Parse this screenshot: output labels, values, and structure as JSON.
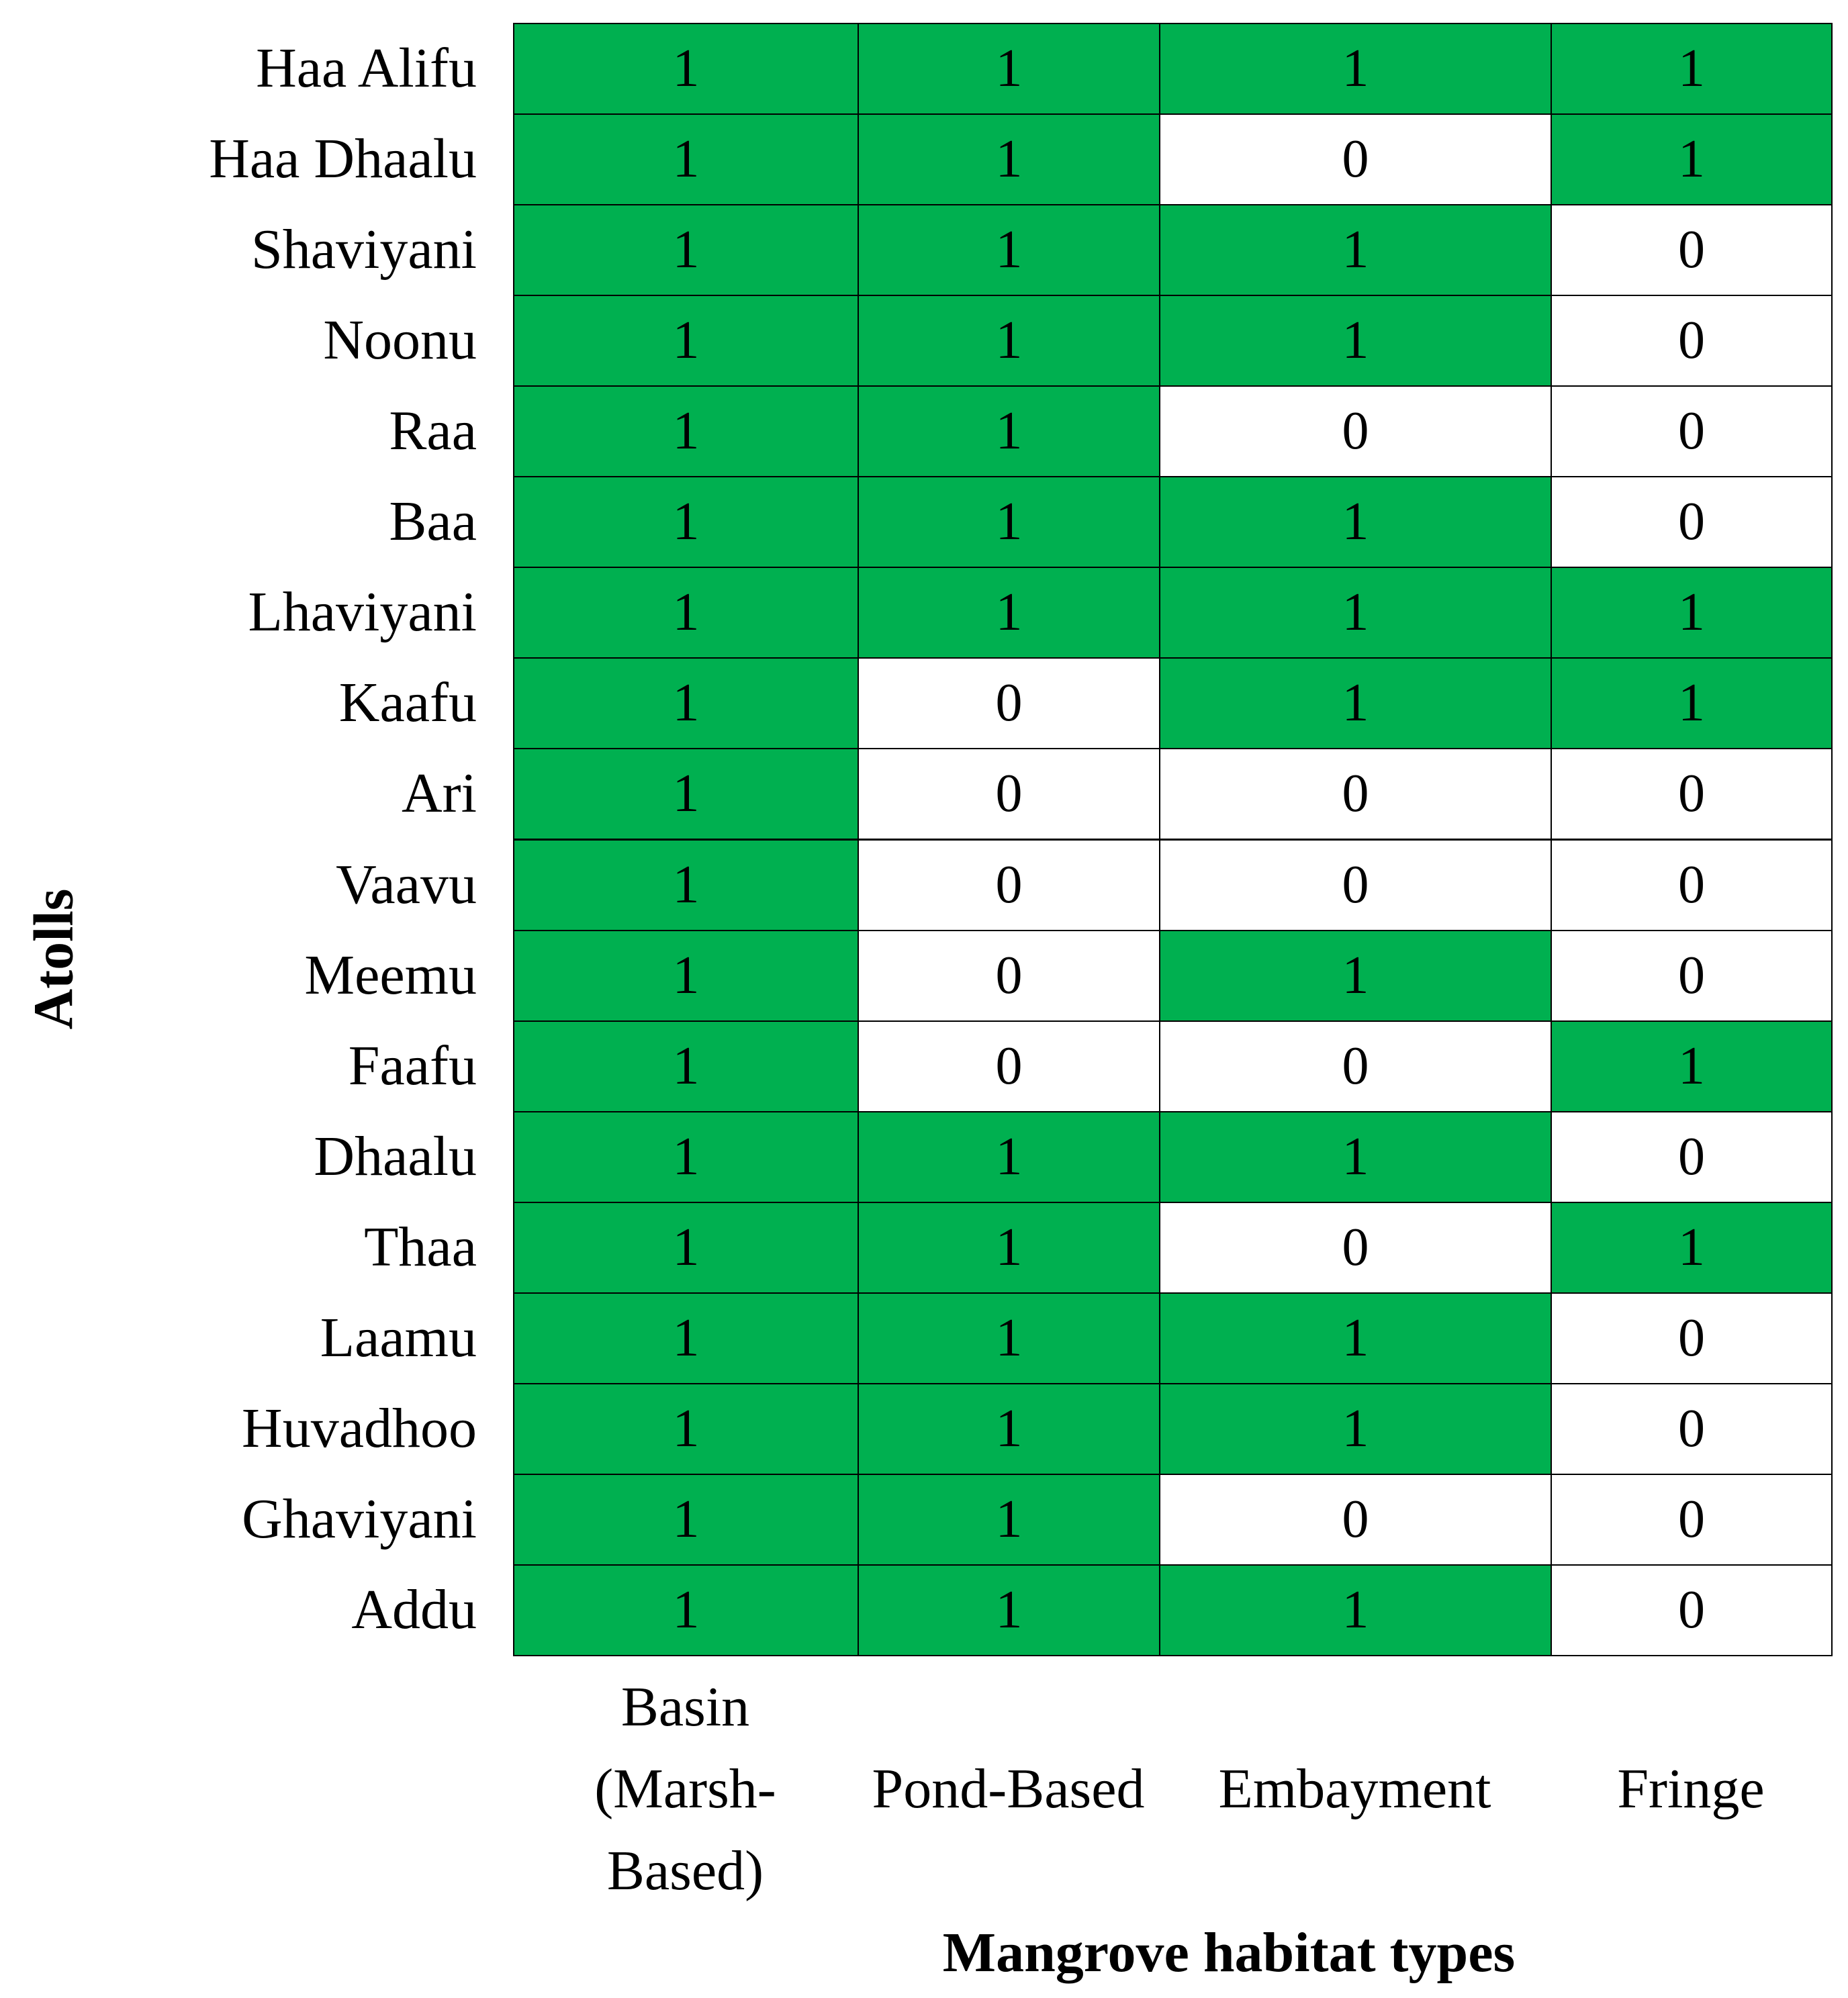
{
  "chart_data": {
    "type": "heatmap",
    "x_label": "Mangrove habitat types",
    "y_label": "Atolls",
    "columns": [
      "Basin (Marsh-Based)",
      "Pond-Based",
      "Embayment",
      "Fringe"
    ],
    "rows": [
      "Haa Alifu",
      "Haa Dhaalu",
      "Shaviyani",
      "Noonu",
      "Raa",
      "Baa",
      "Lhaviyani",
      "Kaafu",
      "Ari",
      "Vaavu",
      "Meemu",
      "Faafu",
      "Dhaalu",
      "Thaa",
      "Laamu",
      "Huvadhoo",
      "Ghaviyani",
      "Addu"
    ],
    "values": [
      [
        1,
        1,
        1,
        1
      ],
      [
        1,
        1,
        0,
        1
      ],
      [
        1,
        1,
        1,
        0
      ],
      [
        1,
        1,
        1,
        0
      ],
      [
        1,
        1,
        0,
        0
      ],
      [
        1,
        1,
        1,
        0
      ],
      [
        1,
        1,
        1,
        1
      ],
      [
        1,
        0,
        1,
        1
      ],
      [
        1,
        0,
        0,
        0
      ],
      [
        1,
        0,
        0,
        0
      ],
      [
        1,
        0,
        1,
        0
      ],
      [
        1,
        0,
        0,
        1
      ],
      [
        1,
        1,
        1,
        0
      ],
      [
        1,
        1,
        0,
        1
      ],
      [
        1,
        1,
        1,
        0
      ],
      [
        1,
        1,
        1,
        0
      ],
      [
        1,
        1,
        0,
        0
      ],
      [
        1,
        1,
        1,
        0
      ]
    ],
    "colors": [
      "#ffffff",
      "#00b050"
    ]
  }
}
